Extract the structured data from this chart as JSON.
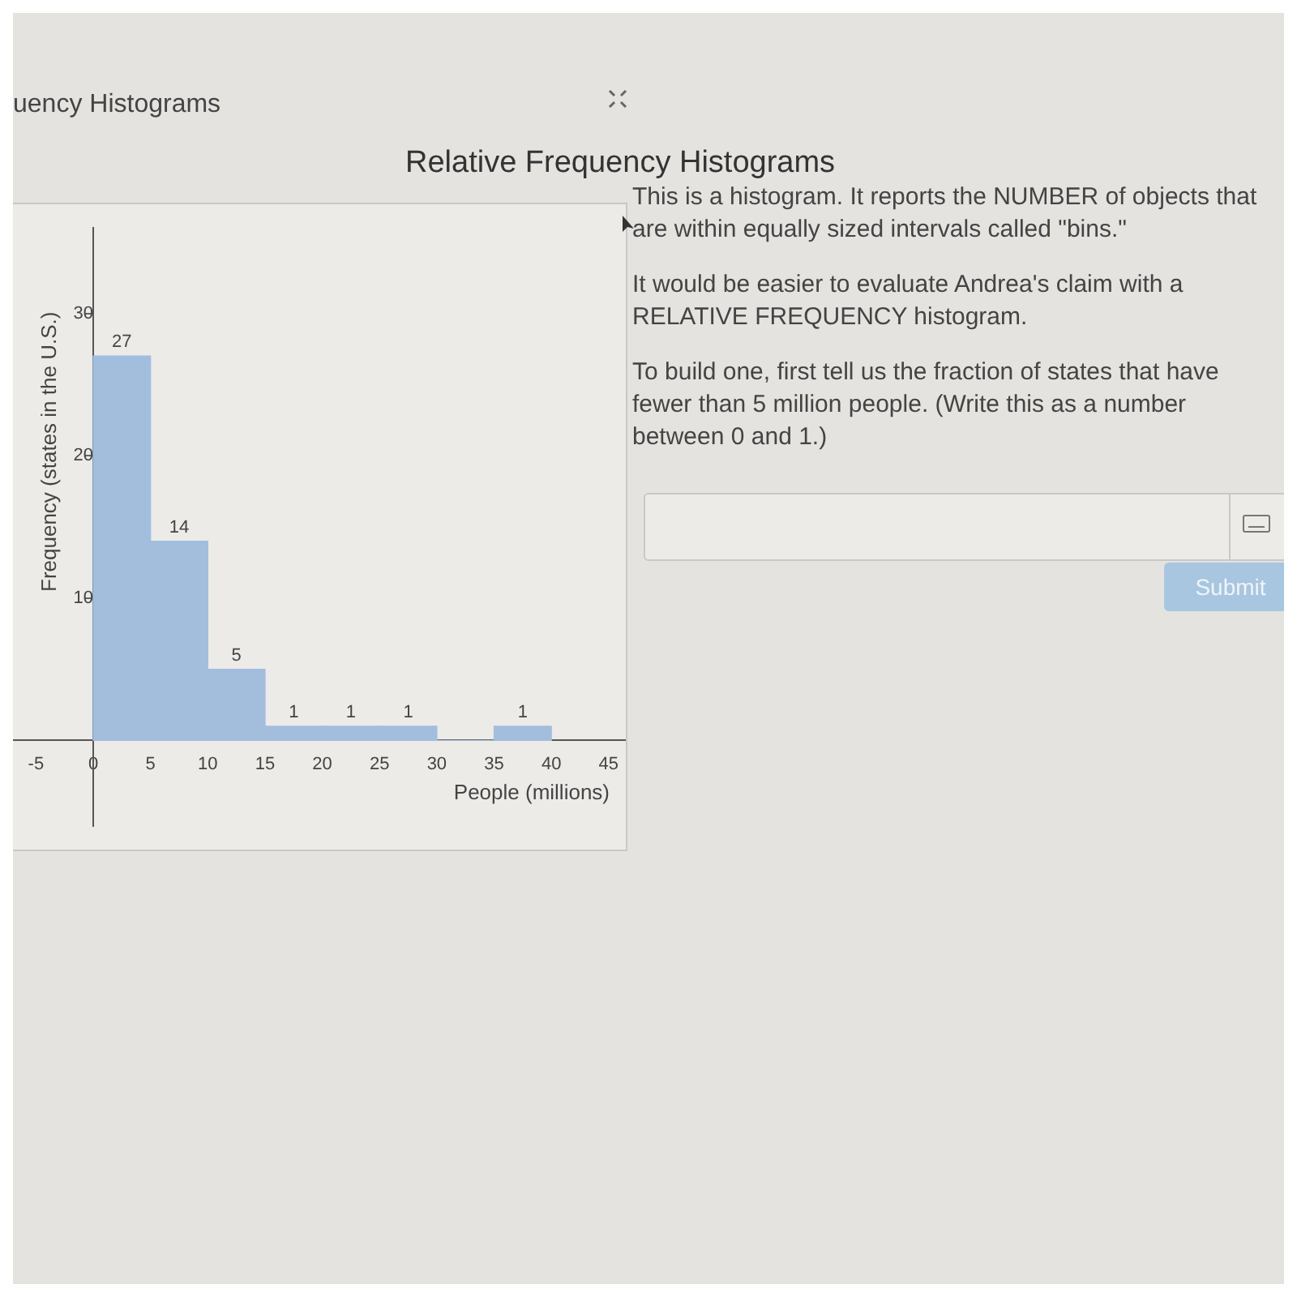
{
  "chart_data": {
    "type": "histogram",
    "title": "Relative Frequency Histograms",
    "xlabel": "People (millions)",
    "ylabel": "Frequency (states in the U.S.)",
    "bins": [
      0,
      5,
      10,
      15,
      20,
      25,
      30,
      35,
      40
    ],
    "values": [
      27,
      14,
      5,
      1,
      1,
      1,
      0,
      1
    ],
    "value_labels": [
      "27",
      "14",
      "5",
      "1",
      "1",
      "1",
      null,
      "1"
    ],
    "color": "#a3bddd",
    "xlim": [
      -8,
      46.5
    ],
    "xticks": [
      -5,
      0,
      5,
      10,
      15,
      20,
      25,
      30,
      35,
      40,
      45
    ],
    "ylim": [
      -6,
      36
    ],
    "yticks": [
      10,
      20,
      30
    ],
    "grid": false,
    "legend": false,
    "annotations": [
      "uency Histograms",
      "This is a histogram. It reports the NUMBER of objects that are within equally sized intervals called \"bins.\"",
      "It would be easier to evaluate Andrea's claim with a RELATIVE FREQUENCY histogram.",
      "To build one, first tell us the fraction of states that have fewer than 5 million people. (Write this as a number between 0 and 1.)",
      "Submit"
    ]
  }
}
